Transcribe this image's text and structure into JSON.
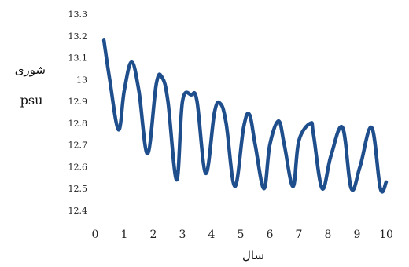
{
  "chart_data": {
    "type": "line",
    "title": "",
    "xlabel": "سال",
    "ylabel": "شوری",
    "yunit": "psu",
    "xlim": [
      0,
      10
    ],
    "ylim": [
      12.4,
      13.3
    ],
    "xticks": [
      "0",
      "1",
      "2",
      "3",
      "4",
      "5",
      "6",
      "7",
      "8",
      "9",
      "10"
    ],
    "yticks": [
      "13.3",
      "13.2",
      "13.1",
      "13",
      "12.9",
      "12.8",
      "12.7",
      "12.6",
      "12.5",
      "12.4"
    ],
    "grid": false,
    "line_color": "#1f4e8c",
    "series": [
      {
        "x": [
          0.3,
          0.5,
          0.8,
          1.0,
          1.25,
          1.5,
          1.8,
          2.1,
          2.3,
          2.5,
          2.8,
          3.0,
          3.3,
          3.5,
          3.8,
          4.1,
          4.3,
          4.5,
          4.8,
          5.1,
          5.3,
          5.5,
          5.8,
          6.0,
          6.3,
          6.5,
          6.8,
          7.0,
          7.4,
          7.5,
          7.8,
          8.1,
          8.5,
          8.8,
          9.1,
          9.5,
          9.8,
          10.0
        ],
        "y": [
          13.18,
          13.0,
          12.77,
          12.95,
          13.08,
          12.95,
          12.66,
          12.98,
          13.01,
          12.9,
          12.54,
          12.9,
          12.93,
          12.9,
          12.57,
          12.85,
          12.89,
          12.8,
          12.51,
          12.78,
          12.84,
          12.7,
          12.5,
          12.7,
          12.81,
          12.7,
          12.51,
          12.72,
          12.8,
          12.75,
          12.5,
          12.65,
          12.78,
          12.5,
          12.6,
          12.78,
          12.5,
          12.53
        ]
      }
    ]
  }
}
